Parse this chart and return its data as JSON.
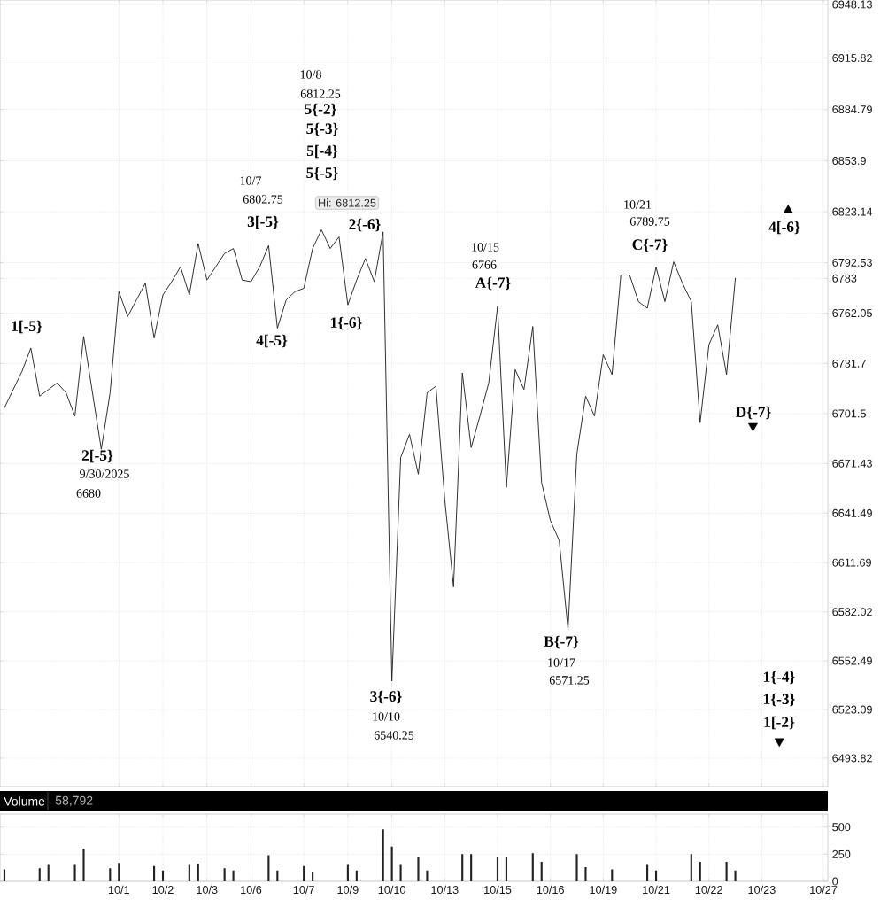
{
  "chart_data": [
    {
      "type": "line",
      "ylim": [
        6476.7,
        6950.8
      ],
      "grid": true,
      "tick_labels": "y",
      "categories": [
        null,
        null,
        null,
        null,
        null,
        null,
        null,
        null,
        null,
        null,
        null,
        null,
        null,
        null,
        null,
        null,
        null,
        null,
        null,
        null,
        null,
        null,
        null,
        null,
        null,
        null,
        null,
        null,
        null,
        null,
        null,
        null,
        null,
        null,
        null,
        null,
        null,
        null,
        null,
        null,
        null,
        null,
        null,
        null,
        null,
        null,
        null,
        null,
        null,
        null,
        null,
        null,
        null,
        null,
        null,
        null,
        null,
        null,
        null,
        null,
        null,
        null,
        null,
        null,
        null,
        null,
        null,
        null,
        null,
        null,
        null,
        null,
        null,
        null,
        null,
        null,
        null,
        null,
        null,
        null,
        null,
        null,
        null,
        null,
        null,
        null,
        null,
        null,
        null,
        null,
        null,
        null,
        null,
        null
      ],
      "yticks": [
        6948.13,
        6915.82,
        6884.79,
        6853.9,
        6823.14,
        6792.53,
        6762.05,
        6731.7,
        6701.5,
        6671.43,
        6641.49,
        6611.69,
        6582.02,
        6552.49,
        6523.09,
        6493.82,
        {
          "value": 6783,
          "label": "6783"
        }
      ],
      "series": [
        {
          "color": "#222222",
          "values": [
            6705,
            6716,
            6727,
            6741,
            6712,
            6716,
            6720,
            6714,
            6700,
            6748,
            6714,
            6680,
            6714,
            6775,
            6760,
            6770,
            6780,
            6747,
            6773,
            6781,
            6790,
            6773,
            6804,
            6782,
            6790,
            6798,
            6801,
            6782,
            6781,
            6790,
            6802.75,
            6753,
            6770,
            6775,
            6777,
            6801,
            6812.25,
            6801,
            6808,
            6767,
            6782,
            6795,
            6781,
            6811,
            6540.25,
            6675,
            6689,
            6665,
            6714,
            6718,
            6650,
            6597,
            6726,
            6681,
            6700,
            6720,
            6766,
            6657,
            6728,
            6716,
            6754,
            6660,
            6637,
            6625,
            6571.25,
            6677,
            6712,
            6700,
            6737,
            6725,
            6785,
            6785,
            6769,
            6765,
            6789.75,
            6769,
            6793,
            6780,
            6769,
            6696,
            6743,
            6755,
            6725,
            6783,
            null,
            null,
            null,
            null,
            null,
            null,
            null,
            null,
            null,
            null
          ]
        },
        {
          "type": "scatter",
          "marker": "triangle",
          "color": "#000000",
          "values": [
            null,
            null,
            null,
            null,
            null,
            null,
            null,
            null,
            null,
            null,
            null,
            null,
            null,
            null,
            null,
            null,
            null,
            null,
            null,
            null,
            null,
            null,
            null,
            null,
            null,
            null,
            null,
            null,
            null,
            null,
            null,
            null,
            null,
            null,
            null,
            null,
            null,
            null,
            null,
            null,
            null,
            null,
            null,
            null,
            null,
            null,
            null,
            null,
            null,
            null,
            null,
            null,
            null,
            null,
            null,
            null,
            null,
            null,
            null,
            null,
            null,
            null,
            null,
            null,
            null,
            null,
            null,
            null,
            null,
            null,
            null,
            null,
            null,
            null,
            null,
            null,
            null,
            null,
            null,
            null,
            null,
            null,
            null,
            null,
            null,
            null,
            null,
            null,
            null,
            6824,
            null,
            null,
            null,
            null
          ]
        },
        {
          "type": "scatter",
          "marker": "triangle-down",
          "color": "#000000",
          "values": [
            null,
            null,
            null,
            null,
            null,
            null,
            null,
            null,
            null,
            null,
            null,
            null,
            null,
            null,
            null,
            null,
            null,
            null,
            null,
            null,
            null,
            null,
            null,
            null,
            null,
            null,
            null,
            null,
            null,
            null,
            null,
            null,
            null,
            null,
            null,
            null,
            null,
            null,
            null,
            null,
            null,
            null,
            null,
            null,
            null,
            null,
            null,
            null,
            null,
            null,
            null,
            null,
            null,
            null,
            null,
            null,
            null,
            null,
            null,
            null,
            null,
            null,
            null,
            null,
            null,
            null,
            null,
            null,
            null,
            null,
            null,
            null,
            null,
            null,
            null,
            null,
            null,
            null,
            null,
            null,
            null,
            null,
            null,
            null,
            null,
            6694,
            null,
            null,
            6504,
            null,
            null,
            null,
            null,
            null
          ]
        }
      ],
      "annotations": [
        "**1[-5}**",
        "**2[-5}**",
        "9/30/2025",
        "6680",
        "10/7",
        "6802.75",
        "**3[-5}**",
        "**4[-5}**",
        "10/8",
        "6812.25",
        "**5{-2}**",
        "**5{-3}**",
        "**5[-4}**",
        "**5{-5}**",
        "Hi: 6812.25",
        "**2{-6}**",
        "**1{-6}**",
        "**3{-6}**",
        "10/10",
        "6540.25",
        "10/15",
        "6766",
        "**A{-7}**",
        "**B{-7}**",
        "10/17",
        "6571.25",
        "10/21",
        "6789.75",
        "**C{-7}**",
        "**4[-6}**",
        "**D{-7}**",
        "**1{-4}**",
        "**1{-3}**",
        "**1[-2}**"
      ]
    },
    {
      "type": "bar",
      "title": "Volume",
      "annotations": [
        "58,792"
      ],
      "ylim": [
        0,
        620
      ],
      "yticks": [
        0,
        250,
        500
      ],
      "grid": true,
      "categories": [
        null,
        null,
        null,
        null,
        null,
        null,
        null,
        null,
        null,
        null,
        null,
        null,
        null,
        "10/1",
        null,
        null,
        null,
        null,
        "10/2",
        null,
        null,
        null,
        null,
        "10/3",
        null,
        null,
        null,
        null,
        "10/6",
        null,
        null,
        null,
        null,
        null,
        "10/7",
        null,
        null,
        null,
        null,
        "10/9",
        null,
        null,
        null,
        null,
        "10/10",
        null,
        null,
        null,
        null,
        null,
        "10/13",
        null,
        null,
        null,
        null,
        null,
        "10/15",
        null,
        null,
        null,
        null,
        null,
        "10/16",
        null,
        null,
        null,
        null,
        null,
        "10/19",
        null,
        null,
        null,
        null,
        null,
        "10/21",
        null,
        null,
        null,
        null,
        null,
        "10/22",
        null,
        null,
        null,
        null,
        null,
        "10/23",
        null,
        null,
        null,
        null,
        null,
        null,
        "10/27"
      ],
      "series": [
        {
          "color": "#222222",
          "values": [
            110,
            null,
            null,
            null,
            120,
            150,
            null,
            null,
            150,
            300,
            null,
            null,
            120,
            170,
            null,
            null,
            null,
            140,
            100,
            null,
            null,
            150,
            160,
            null,
            null,
            120,
            100,
            null,
            null,
            null,
            240,
            100,
            null,
            null,
            140,
            90,
            null,
            null,
            null,
            150,
            100,
            null,
            null,
            480,
            320,
            150,
            null,
            220,
            100,
            null,
            null,
            null,
            250,
            250,
            null,
            null,
            220,
            220,
            null,
            null,
            260,
            180,
            null,
            null,
            null,
            250,
            130,
            null,
            null,
            110,
            null,
            null,
            null,
            150,
            100,
            null,
            null,
            null,
            250,
            180,
            null,
            null,
            180,
            100,
            null,
            null,
            null,
            null,
            null,
            null,
            null,
            null,
            null,
            null
          ]
        }
      ]
    }
  ]
}
